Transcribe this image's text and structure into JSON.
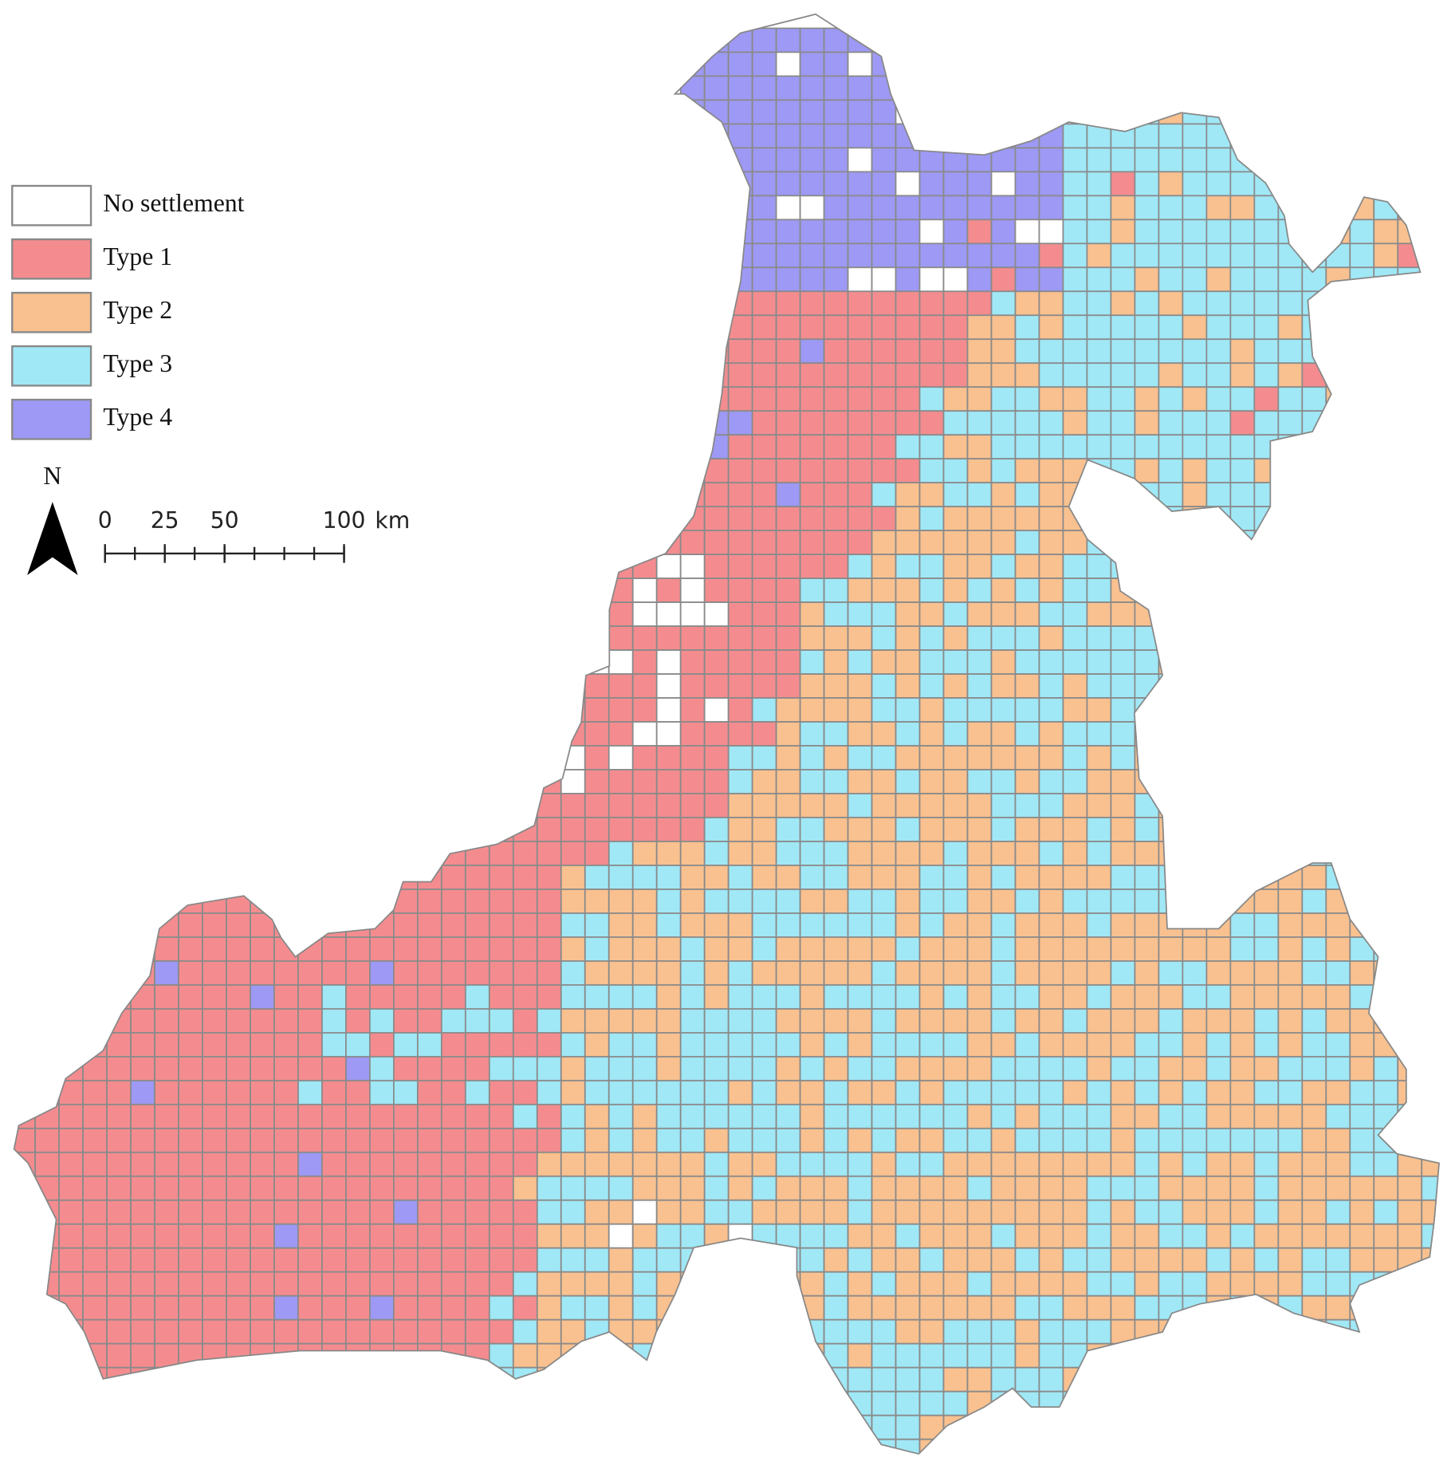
{
  "legend": {
    "items": [
      {
        "label": "No settlement",
        "color": "#ffffff"
      },
      {
        "label": "Type 1",
        "color": "#f48c8f"
      },
      {
        "label": "Type 2",
        "color": "#f9c18f"
      },
      {
        "label": "Type 3",
        "color": "#a0e8f6"
      },
      {
        "label": "Type 4",
        "color": "#9d99f4"
      }
    ]
  },
  "north_label": "N",
  "scale_bar": {
    "ticks": [
      0,
      25,
      50,
      100
    ],
    "unit": "km"
  }
}
